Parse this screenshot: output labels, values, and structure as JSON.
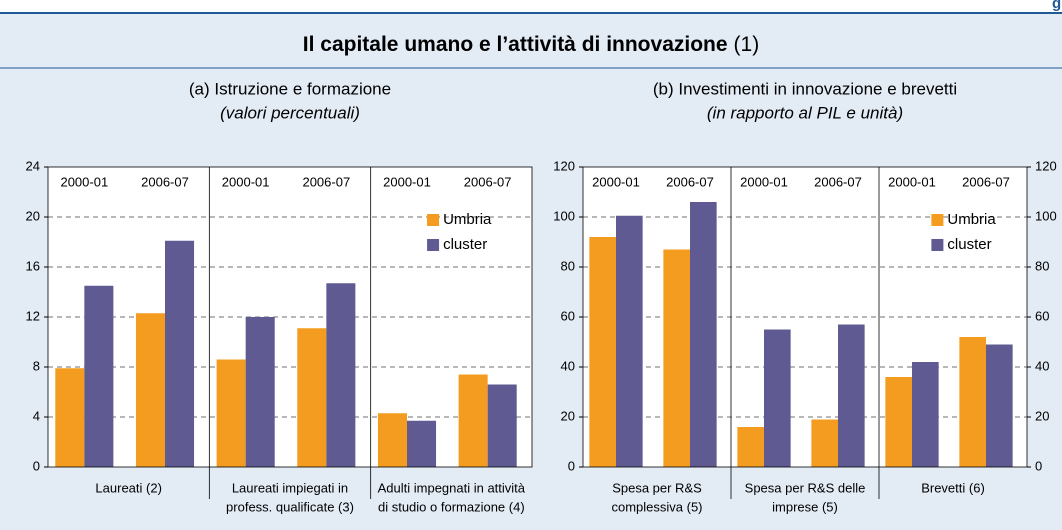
{
  "header": {
    "tag": "g",
    "title": "Il capitale umano e l’attività di innovazione",
    "note": "(1)"
  },
  "chart_data": [
    {
      "type": "bar",
      "title": "(a) Istruzione e formazione",
      "subtitle": "(valori percentuali)",
      "categories": [
        "2000-01",
        "2006-07",
        "2000-01",
        "2006-07",
        "2000-01",
        "2006-07"
      ],
      "groups": [
        [
          "Laureati (2)"
        ],
        [
          "Laureati impiegati in",
          "profess. qualificate (3)"
        ],
        [
          "Adulti impegnati in attività",
          "di studio o formazione (4)"
        ]
      ],
      "series": [
        {
          "name": "Umbria",
          "color": "#f39c1f",
          "values": [
            7.9,
            12.3,
            8.6,
            11.1,
            4.3,
            7.4
          ]
        },
        {
          "name": "cluster",
          "color": "#5f5b92",
          "values": [
            14.5,
            18.1,
            12.0,
            14.7,
            3.7,
            6.6
          ]
        }
      ],
      "ylim": [
        0,
        24
      ],
      "yticks": [
        0,
        4,
        8,
        12,
        16,
        20,
        24
      ],
      "grid": true,
      "legend": "top-right"
    },
    {
      "type": "bar",
      "title": "(b) Investimenti in innovazione e brevetti",
      "subtitle": "(in rapporto al PIL e unità)",
      "categories": [
        "2000-01",
        "2006-07",
        "2000-01",
        "2006-07",
        "2000-01",
        "2006-07"
      ],
      "groups": [
        [
          "Spesa per R&S",
          "complessiva (5)"
        ],
        [
          "Spesa per R&S delle",
          "imprese (5)"
        ],
        [
          "Brevetti (6)"
        ]
      ],
      "series": [
        {
          "name": "Umbria",
          "color": "#f39c1f",
          "values": [
            92,
            87,
            16,
            19,
            36,
            52
          ]
        },
        {
          "name": "cluster",
          "color": "#5f5b92",
          "values": [
            100.5,
            106,
            55,
            57,
            42,
            49
          ]
        }
      ],
      "ylim": [
        0,
        120
      ],
      "yticks": [
        0,
        20,
        40,
        60,
        80,
        100,
        120
      ],
      "y2lim": [
        0,
        120
      ],
      "y2ticks": [
        0,
        20,
        40,
        60,
        80,
        100,
        120
      ],
      "grid": true,
      "legend": "top-right"
    }
  ]
}
